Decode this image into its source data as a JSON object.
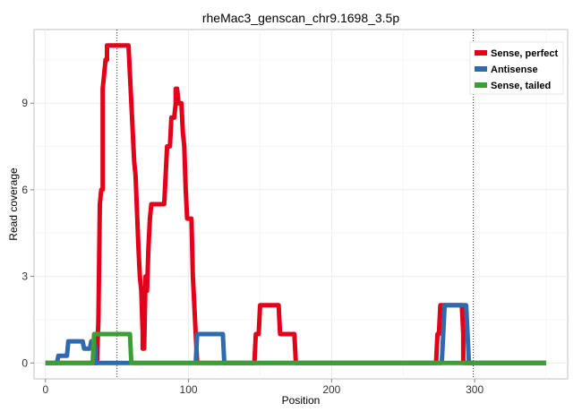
{
  "chart_data": {
    "type": "line",
    "title": "rheMac3_genscan_chr9.1698_3.5p",
    "xlabel": "Position",
    "ylabel": "Read coverage",
    "xlim": [
      -8,
      365
    ],
    "ylim": [
      -0.55,
      11.55
    ],
    "xticks": [
      0,
      100,
      200,
      300
    ],
    "yticks": [
      0,
      3,
      6,
      9
    ],
    "vlines": [
      50,
      299
    ],
    "grid": true,
    "legend_position": "top-right",
    "series": [
      {
        "name": "Sense, perfect",
        "color": "#E2001A",
        "points": [
          [
            0,
            0
          ],
          [
            36,
            0
          ],
          [
            37,
            1.5
          ],
          [
            38,
            5.5
          ],
          [
            39,
            6
          ],
          [
            40,
            6
          ],
          [
            40,
            9.5
          ],
          [
            41,
            10
          ],
          [
            42,
            10.5
          ],
          [
            43,
            10.5
          ],
          [
            43,
            11
          ],
          [
            58,
            11
          ],
          [
            59,
            10
          ],
          [
            60,
            9
          ],
          [
            62,
            7
          ],
          [
            63,
            6.5
          ],
          [
            65,
            4
          ],
          [
            66,
            3
          ],
          [
            67,
            2.5
          ],
          [
            68,
            1
          ],
          [
            68,
            0.5
          ],
          [
            69,
            0.5
          ],
          [
            70,
            3
          ],
          [
            71,
            2.5
          ],
          [
            72,
            4
          ],
          [
            73,
            5
          ],
          [
            74,
            5.5
          ],
          [
            83,
            5.5
          ],
          [
            84,
            6.5
          ],
          [
            85,
            7.5
          ],
          [
            87,
            7.5
          ],
          [
            88,
            8.5
          ],
          [
            90,
            8.5
          ],
          [
            91,
            9
          ],
          [
            91,
            9.5
          ],
          [
            92,
            9.5
          ],
          [
            93,
            9
          ],
          [
            95,
            9
          ],
          [
            96,
            8
          ],
          [
            97,
            7.5
          ],
          [
            98,
            6
          ],
          [
            99,
            5
          ],
          [
            102,
            5
          ],
          [
            103,
            3
          ],
          [
            105,
            1
          ],
          [
            106,
            0
          ],
          [
            146,
            0
          ],
          [
            147,
            1
          ],
          [
            149,
            1
          ],
          [
            150,
            2
          ],
          [
            163,
            2
          ],
          [
            164,
            1
          ],
          [
            174,
            1
          ],
          [
            175,
            0
          ],
          [
            273,
            0
          ],
          [
            274,
            1
          ],
          [
            275,
            1
          ],
          [
            276,
            2
          ],
          [
            291,
            2
          ],
          [
            292,
            1
          ],
          [
            292,
            0
          ],
          [
            350,
            0
          ]
        ]
      },
      {
        "name": "Antisense",
        "color": "#2F6AAE",
        "points": [
          [
            0,
            0
          ],
          [
            8,
            0
          ],
          [
            9,
            0.25
          ],
          [
            15,
            0.25
          ],
          [
            16,
            0.75
          ],
          [
            26,
            0.75
          ],
          [
            27,
            0.5
          ],
          [
            31,
            0.5
          ],
          [
            32,
            0.75
          ],
          [
            34,
            0.75
          ],
          [
            35,
            0.5
          ],
          [
            35,
            0
          ],
          [
            105,
            0
          ],
          [
            106,
            1
          ],
          [
            124,
            1
          ],
          [
            125,
            0
          ],
          [
            277,
            0
          ],
          [
            278,
            1
          ],
          [
            279,
            2
          ],
          [
            294,
            2
          ],
          [
            295,
            1
          ],
          [
            296,
            0
          ],
          [
            350,
            0
          ]
        ]
      },
      {
        "name": "Sense, tailed",
        "color": "#3E9E35",
        "points": [
          [
            0,
            0
          ],
          [
            33,
            0
          ],
          [
            34,
            1
          ],
          [
            59,
            1
          ],
          [
            60,
            0
          ],
          [
            350,
            0
          ]
        ]
      }
    ]
  }
}
